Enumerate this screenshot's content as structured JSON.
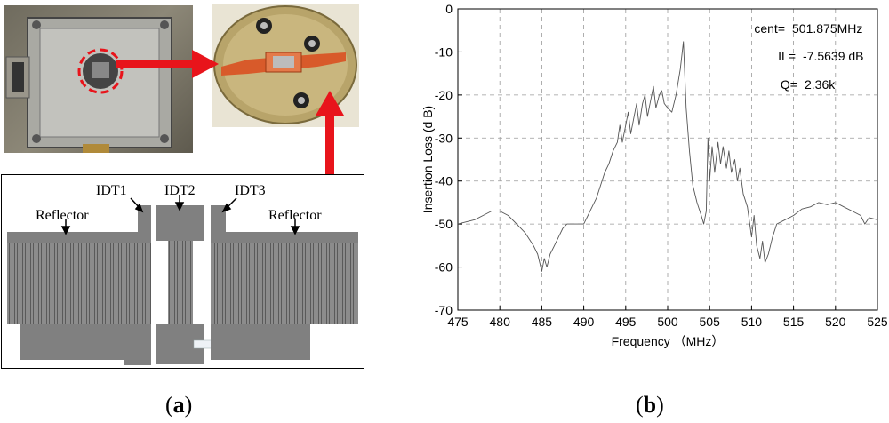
{
  "panel_a": {
    "caption_open": "(",
    "caption_letter": "a",
    "caption_close": ")",
    "labels": {
      "reflector_left": "Reflector",
      "idt1": "IDT1",
      "idt2": "IDT2",
      "idt3": "IDT3",
      "reflector_right": "Reflector"
    },
    "colors": {
      "arrow": "#e8141b",
      "electrode": "#808080"
    }
  },
  "panel_b": {
    "caption_open": "(",
    "caption_letter": "b",
    "caption_close": ")"
  },
  "chart_data": {
    "type": "line",
    "title": "",
    "xlabel": "Frequency （MHz）",
    "ylabel": "Insertion Loss (d B)",
    "xlim": [
      475,
      525
    ],
    "ylim": [
      -70,
      0
    ],
    "xticks": [
      475,
      480,
      485,
      490,
      495,
      500,
      505,
      510,
      515,
      520,
      525
    ],
    "yticks": [
      0,
      -10,
      -20,
      -30,
      -40,
      -50,
      -60,
      -70
    ],
    "grid": true,
    "annotations": [
      {
        "key": "cent=",
        "value": "501.875MHz"
      },
      {
        "key": "IL=",
        "value": "-7.5639 dB"
      },
      {
        "key": "Q=",
        "value": "2.36k"
      }
    ],
    "series": [
      {
        "color": "#555555",
        "x": [
          475,
          476,
          477,
          478,
          479,
          480,
          481,
          482,
          483,
          484,
          484.5,
          485,
          485.3,
          485.6,
          486,
          486.5,
          487,
          487.5,
          488,
          489,
          490,
          490.5,
          491,
          491.5,
          492,
          492.5,
          493,
          493.5,
          494,
          494.3,
          494.6,
          495,
          495.3,
          495.6,
          496,
          496.3,
          496.6,
          497,
          497.3,
          497.6,
          498,
          498.3,
          498.6,
          499,
          499.3,
          499.6,
          500,
          500.5,
          501,
          501.5,
          501.875,
          502.2,
          502.6,
          503,
          503.5,
          504,
          504.3,
          504.6,
          504.8,
          505,
          505.3,
          505.6,
          506,
          506.3,
          506.6,
          507,
          507.3,
          507.6,
          508,
          508.3,
          508.6,
          509,
          509.5,
          510,
          510.3,
          510.6,
          511,
          511.3,
          511.6,
          512,
          512.5,
          513,
          514,
          515,
          516,
          517,
          518,
          519,
          520,
          521,
          522,
          523,
          523.5,
          524,
          525
        ],
        "y": [
          -50,
          -49.5,
          -49,
          -48,
          -47,
          -47,
          -48,
          -50,
          -52,
          -55,
          -57,
          -61,
          -58,
          -60,
          -57,
          -55,
          -53,
          -51,
          -50,
          -50,
          -50,
          -48,
          -46,
          -44,
          -41,
          -38,
          -36,
          -33,
          -31,
          -27,
          -31,
          -27,
          -24,
          -29,
          -25,
          -22,
          -27,
          -22,
          -20,
          -25,
          -21,
          -18,
          -23,
          -20,
          -19,
          -22,
          -23,
          -24,
          -20,
          -14,
          -7.6,
          -23,
          -33,
          -41,
          -45,
          -48,
          -50,
          -47,
          -30,
          -40,
          -32,
          -38,
          -31,
          -36,
          -32,
          -37,
          -33,
          -38,
          -35,
          -40,
          -37,
          -43,
          -46,
          -53,
          -48,
          -55,
          -58,
          -54,
          -59,
          -57,
          -53,
          -50,
          -49,
          -48,
          -46.5,
          -46,
          -45,
          -45.5,
          -45,
          -46,
          -47,
          -48,
          -50,
          -48.5,
          -49
        ]
      }
    ]
  }
}
